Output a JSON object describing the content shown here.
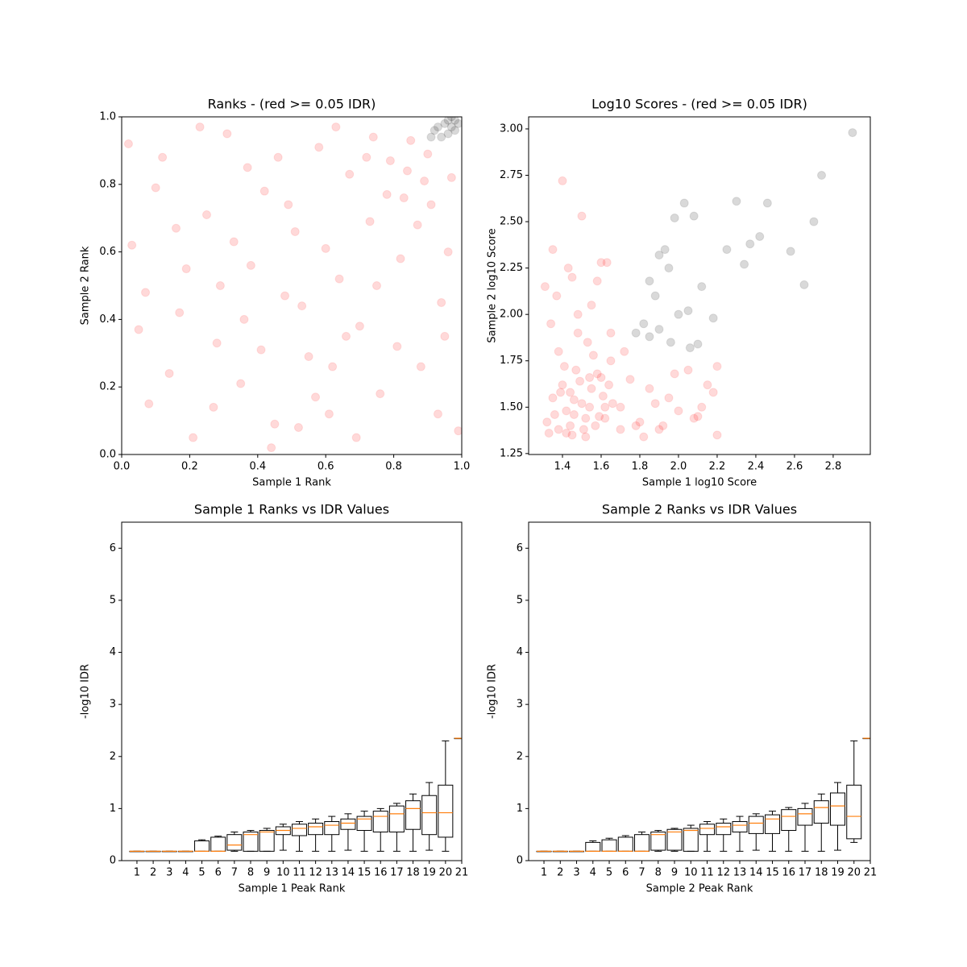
{
  "chart_data": [
    {
      "type": "scatter",
      "title": "Ranks - (red >= 0.05 IDR)",
      "xlabel": "Sample 1 Rank",
      "ylabel": "Sample 2 Rank",
      "alpha": 0.1,
      "xlim": [
        0,
        1
      ],
      "ylim": [
        0,
        1
      ],
      "xticks": [
        {
          "value": 0,
          "label": "0.0"
        },
        0.2,
        0.4,
        0.6,
        0.8,
        {
          "value": 1,
          "label": "1.0"
        }
      ],
      "yticks": [
        {
          "value": 0,
          "label": "0.0"
        },
        0.2,
        0.4,
        0.6,
        0.8,
        {
          "value": 1,
          "label": "1.0"
        }
      ],
      "series": [
        {
          "color": "#ff0000",
          "x": [
            0.03,
            0.08,
            0.12,
            0.17,
            0.21,
            0.25,
            0.28,
            0.31,
            0.35,
            0.38,
            0.42,
            0.45,
            0.48,
            0.51,
            0.55,
            0.58,
            0.61,
            0.64,
            0.67,
            0.7,
            0.73,
            0.76,
            0.79,
            0.82,
            0.85,
            0.88,
            0.91,
            0.94,
            0.97,
            0.99,
            0.05,
            0.1,
            0.14,
            0.19,
            0.23,
            0.27,
            0.33,
            0.37,
            0.41,
            0.44,
            0.49,
            0.53,
            0.57,
            0.6,
            0.63,
            0.66,
            0.69,
            0.72,
            0.75,
            0.78,
            0.81,
            0.84,
            0.87,
            0.9,
            0.93,
            0.96,
            0.02,
            0.07,
            0.16,
            0.29,
            0.36,
            0.46,
            0.52,
            0.62,
            0.74,
            0.83,
            0.89,
            0.95
          ],
          "values": [
            0.62,
            0.15,
            0.88,
            0.42,
            0.05,
            0.71,
            0.33,
            0.95,
            0.21,
            0.56,
            0.78,
            0.09,
            0.47,
            0.66,
            0.29,
            0.91,
            0.12,
            0.52,
            0.83,
            0.38,
            0.69,
            0.18,
            0.87,
            0.58,
            0.93,
            0.26,
            0.74,
            0.45,
            0.82,
            0.07,
            0.37,
            0.79,
            0.24,
            0.55,
            0.97,
            0.14,
            0.63,
            0.85,
            0.31,
            0.02,
            0.74,
            0.44,
            0.17,
            0.61,
            0.97,
            0.35,
            0.05,
            0.88,
            0.5,
            0.77,
            0.32,
            0.84,
            0.68,
            0.89,
            0.12,
            0.6,
            0.92,
            0.48,
            0.67,
            0.5,
            0.4,
            0.88,
            0.08,
            0.26,
            0.94,
            0.76,
            0.81,
            0.35
          ]
        },
        {
          "color": "#000000",
          "x": [
            0.92,
            0.94,
            0.95,
            0.96,
            0.97,
            0.98,
            0.99,
            0.93,
            0.96,
            0.98,
            0.91,
            0.97
          ],
          "values": [
            0.96,
            0.94,
            0.98,
            0.95,
            0.97,
            0.99,
            0.98,
            0.97,
            0.99,
            0.96,
            0.94,
            1.0
          ]
        }
      ]
    },
    {
      "type": "scatter",
      "title": "Log10 Scores - (red >= 0.05 IDR)",
      "xlabel": "Sample 1 log10 Score",
      "ylabel": "Sample 2 log10 Score",
      "alpha": 0.1,
      "xlim": [
        1.225,
        2.992
      ],
      "ylim": [
        1.245,
        3.065
      ],
      "xticks": [
        1.4,
        1.6,
        1.8,
        {
          "value": 2,
          "label": "2.0"
        },
        2.2,
        2.4,
        2.6,
        2.8
      ],
      "yticks": [
        1.25,
        {
          "value": 1.5,
          "label": "1.50"
        },
        1.75,
        {
          "value": 2,
          "label": "2.00"
        },
        2.25,
        {
          "value": 2.5,
          "label": "2.50"
        },
        2.75,
        {
          "value": 3,
          "label": "3.00"
        }
      ],
      "series": [
        {
          "color": "#ff0000",
          "x": [
            1.32,
            1.35,
            1.38,
            1.4,
            1.42,
            1.45,
            1.47,
            1.5,
            1.52,
            1.55,
            1.57,
            1.6,
            1.62,
            1.65,
            1.33,
            1.36,
            1.39,
            1.41,
            1.44,
            1.46,
            1.49,
            1.51,
            1.54,
            1.56,
            1.59,
            1.61,
            1.64,
            1.34,
            1.37,
            1.43,
            1.48,
            1.53,
            1.58,
            1.63,
            1.31,
            1.4,
            1.5,
            1.6,
            1.7,
            1.75,
            1.8,
            1.85,
            1.9,
            1.95,
            2.0,
            2.05,
            2.1,
            2.15,
            2.2,
            1.72,
            1.78,
            1.88,
            1.98,
            2.08,
            2.18,
            1.35,
            1.45,
            1.55,
            1.65,
            1.38,
            1.48,
            1.58,
            1.42,
            1.52,
            1.62,
            1.44,
            1.54,
            1.66,
            1.7,
            1.46,
            1.82,
            1.92,
            2.12,
            2.2
          ],
          "values": [
            1.42,
            1.55,
            1.38,
            1.62,
            1.48,
            1.35,
            1.7,
            1.52,
            1.44,
            1.6,
            1.4,
            1.66,
            1.5,
            1.75,
            1.36,
            1.46,
            1.58,
            1.72,
            1.4,
            1.54,
            1.64,
            1.38,
            1.5,
            1.78,
            1.45,
            1.56,
            1.62,
            1.95,
            2.1,
            2.25,
            2.0,
            1.85,
            2.18,
            2.28,
            2.15,
            2.72,
            2.53,
            2.28,
            1.5,
            1.65,
            1.42,
            1.6,
            1.38,
            1.55,
            1.48,
            1.7,
            1.45,
            1.62,
            1.35,
            1.8,
            1.4,
            1.52,
            1.68,
            1.44,
            1.58,
            2.35,
            2.2,
            2.05,
            1.9,
            1.8,
            1.9,
            1.68,
            1.36,
            1.34,
            1.44,
            1.58,
            1.66,
            1.52,
            1.38,
            1.46,
            1.34,
            1.4,
            1.5,
            1.72
          ]
        },
        {
          "color": "#000000",
          "x": [
            1.78,
            1.82,
            1.85,
            1.88,
            1.9,
            1.93,
            1.96,
            2.0,
            2.03,
            2.06,
            1.9,
            1.98,
            2.08,
            2.12,
            2.18,
            2.25,
            2.3,
            2.34,
            2.37,
            2.42,
            2.46,
            2.58,
            2.65,
            2.7,
            2.74,
            2.9,
            2.05,
            1.85,
            1.95,
            2.1
          ],
          "values": [
            1.9,
            1.95,
            1.88,
            2.1,
            1.92,
            2.35,
            1.85,
            2.0,
            2.6,
            1.82,
            2.32,
            2.52,
            2.53,
            2.15,
            1.98,
            2.35,
            2.61,
            2.27,
            2.38,
            2.42,
            2.6,
            2.34,
            2.16,
            2.5,
            2.75,
            2.98,
            2.02,
            2.18,
            2.25,
            1.84
          ]
        }
      ]
    },
    {
      "type": "box",
      "title": "Sample 1 Ranks vs IDR Values",
      "xlabel": "Sample 1 Peak Rank",
      "ylabel": "-log10 IDR",
      "xlim": [
        0.06,
        21
      ],
      "ylim": [
        0,
        6.5
      ],
      "xticks": [
        1,
        2,
        3,
        4,
        5,
        6,
        7,
        8,
        9,
        10,
        11,
        12,
        13,
        14,
        15,
        16,
        17,
        18,
        19,
        20,
        21
      ],
      "yticks": [
        0,
        1,
        2,
        3,
        4,
        5,
        6
      ],
      "box_color": "#000000",
      "median_color": "#ff7f0e",
      "boxes": [
        {
          "position": 1,
          "whislo": 0.18,
          "q1": 0.18,
          "med": 0.18,
          "q3": 0.18,
          "whishi": 0.18
        },
        {
          "position": 2,
          "whislo": 0.18,
          "q1": 0.18,
          "med": 0.18,
          "q3": 0.18,
          "whishi": 0.18
        },
        {
          "position": 3,
          "whislo": 0.18,
          "q1": 0.18,
          "med": 0.18,
          "q3": 0.18,
          "whishi": 0.18
        },
        {
          "position": 4,
          "whislo": 0.18,
          "q1": 0.18,
          "med": 0.18,
          "q3": 0.18,
          "whishi": 0.18
        },
        {
          "position": 5,
          "whislo": 0.18,
          "q1": 0.18,
          "med": 0.18,
          "q3": 0.38,
          "whishi": 0.4
        },
        {
          "position": 6,
          "whislo": 0.18,
          "q1": 0.18,
          "med": 0.18,
          "q3": 0.45,
          "whishi": 0.47
        },
        {
          "position": 7,
          "whislo": 0.18,
          "q1": 0.2,
          "med": 0.3,
          "q3": 0.5,
          "whishi": 0.55
        },
        {
          "position": 8,
          "whislo": 0.18,
          "q1": 0.18,
          "med": 0.5,
          "q3": 0.55,
          "whishi": 0.58
        },
        {
          "position": 9,
          "whislo": 0.18,
          "q1": 0.18,
          "med": 0.55,
          "q3": 0.58,
          "whishi": 0.62
        },
        {
          "position": 10,
          "whislo": 0.2,
          "q1": 0.5,
          "med": 0.58,
          "q3": 0.65,
          "whishi": 0.7
        },
        {
          "position": 11,
          "whislo": 0.18,
          "q1": 0.48,
          "med": 0.62,
          "q3": 0.7,
          "whishi": 0.75
        },
        {
          "position": 12,
          "whislo": 0.18,
          "q1": 0.5,
          "med": 0.65,
          "q3": 0.72,
          "whishi": 0.8
        },
        {
          "position": 13,
          "whislo": 0.18,
          "q1": 0.5,
          "med": 0.68,
          "q3": 0.75,
          "whishi": 0.85
        },
        {
          "position": 14,
          "whislo": 0.2,
          "q1": 0.6,
          "med": 0.72,
          "q3": 0.8,
          "whishi": 0.9
        },
        {
          "position": 15,
          "whislo": 0.18,
          "q1": 0.58,
          "med": 0.8,
          "q3": 0.85,
          "whishi": 0.95
        },
        {
          "position": 16,
          "whislo": 0.18,
          "q1": 0.55,
          "med": 0.85,
          "q3": 0.95,
          "whishi": 1.0
        },
        {
          "position": 17,
          "whislo": 0.18,
          "q1": 0.55,
          "med": 0.9,
          "q3": 1.05,
          "whishi": 1.1
        },
        {
          "position": 18,
          "whislo": 0.18,
          "q1": 0.6,
          "med": 1.0,
          "q3": 1.15,
          "whishi": 1.28
        },
        {
          "position": 19,
          "whislo": 0.2,
          "q1": 0.5,
          "med": 0.92,
          "q3": 1.25,
          "whishi": 1.5
        },
        {
          "position": 20,
          "whislo": 0.18,
          "q1": 0.45,
          "med": 0.92,
          "q3": 1.45,
          "whishi": 2.3
        },
        {
          "position": 21,
          "whislo": 2.35,
          "q1": 2.35,
          "med": 2.35,
          "q3": 2.35,
          "whishi": 2.35
        }
      ]
    },
    {
      "type": "box",
      "title": "Sample 2 Ranks vs IDR Values",
      "xlabel": "Sample 2 Peak Rank",
      "ylabel": "-log10 IDR",
      "xlim": [
        0.06,
        21
      ],
      "ylim": [
        0,
        6.5
      ],
      "xticks": [
        1,
        2,
        3,
        4,
        5,
        6,
        7,
        8,
        9,
        10,
        11,
        12,
        13,
        14,
        15,
        16,
        17,
        18,
        19,
        20,
        21
      ],
      "yticks": [
        0,
        1,
        2,
        3,
        4,
        5,
        6
      ],
      "box_color": "#000000",
      "median_color": "#ff7f0e",
      "boxes": [
        {
          "position": 1,
          "whislo": 0.18,
          "q1": 0.18,
          "med": 0.18,
          "q3": 0.18,
          "whishi": 0.18
        },
        {
          "position": 2,
          "whislo": 0.18,
          "q1": 0.18,
          "med": 0.18,
          "q3": 0.18,
          "whishi": 0.18
        },
        {
          "position": 3,
          "whislo": 0.18,
          "q1": 0.18,
          "med": 0.18,
          "q3": 0.18,
          "whishi": 0.18
        },
        {
          "position": 4,
          "whislo": 0.18,
          "q1": 0.18,
          "med": 0.18,
          "q3": 0.35,
          "whishi": 0.38
        },
        {
          "position": 5,
          "whislo": 0.18,
          "q1": 0.18,
          "med": 0.18,
          "q3": 0.4,
          "whishi": 0.43
        },
        {
          "position": 6,
          "whislo": 0.18,
          "q1": 0.18,
          "med": 0.18,
          "q3": 0.45,
          "whishi": 0.48
        },
        {
          "position": 7,
          "whislo": 0.18,
          "q1": 0.18,
          "med": 0.18,
          "q3": 0.5,
          "whishi": 0.55
        },
        {
          "position": 8,
          "whislo": 0.18,
          "q1": 0.2,
          "med": 0.5,
          "q3": 0.55,
          "whishi": 0.58
        },
        {
          "position": 9,
          "whislo": 0.18,
          "q1": 0.2,
          "med": 0.55,
          "q3": 0.6,
          "whishi": 0.62
        },
        {
          "position": 10,
          "whislo": 0.18,
          "q1": 0.18,
          "med": 0.58,
          "q3": 0.62,
          "whishi": 0.68
        },
        {
          "position": 11,
          "whislo": 0.18,
          "q1": 0.5,
          "med": 0.62,
          "q3": 0.7,
          "whishi": 0.75
        },
        {
          "position": 12,
          "whislo": 0.18,
          "q1": 0.5,
          "med": 0.65,
          "q3": 0.72,
          "whishi": 0.8
        },
        {
          "position": 13,
          "whislo": 0.18,
          "q1": 0.55,
          "med": 0.68,
          "q3": 0.75,
          "whishi": 0.85
        },
        {
          "position": 14,
          "whislo": 0.2,
          "q1": 0.52,
          "med": 0.72,
          "q3": 0.85,
          "whishi": 0.9
        },
        {
          "position": 15,
          "whislo": 0.18,
          "q1": 0.52,
          "med": 0.8,
          "q3": 0.88,
          "whishi": 0.95
        },
        {
          "position": 16,
          "whislo": 0.18,
          "q1": 0.58,
          "med": 0.85,
          "q3": 0.98,
          "whishi": 1.02
        },
        {
          "position": 17,
          "whislo": 0.18,
          "q1": 0.68,
          "med": 0.9,
          "q3": 1.0,
          "whishi": 1.1
        },
        {
          "position": 18,
          "whislo": 0.18,
          "q1": 0.72,
          "med": 1.02,
          "q3": 1.15,
          "whishi": 1.28
        },
        {
          "position": 19,
          "whislo": 0.2,
          "q1": 0.68,
          "med": 1.05,
          "q3": 1.3,
          "whishi": 1.5
        },
        {
          "position": 20,
          "whislo": 0.35,
          "q1": 0.42,
          "med": 0.85,
          "q3": 1.45,
          "whishi": 2.3
        },
        {
          "position": 21,
          "whislo": 2.35,
          "q1": 2.35,
          "med": 2.35,
          "q3": 2.35,
          "whishi": 2.35
        }
      ]
    }
  ]
}
